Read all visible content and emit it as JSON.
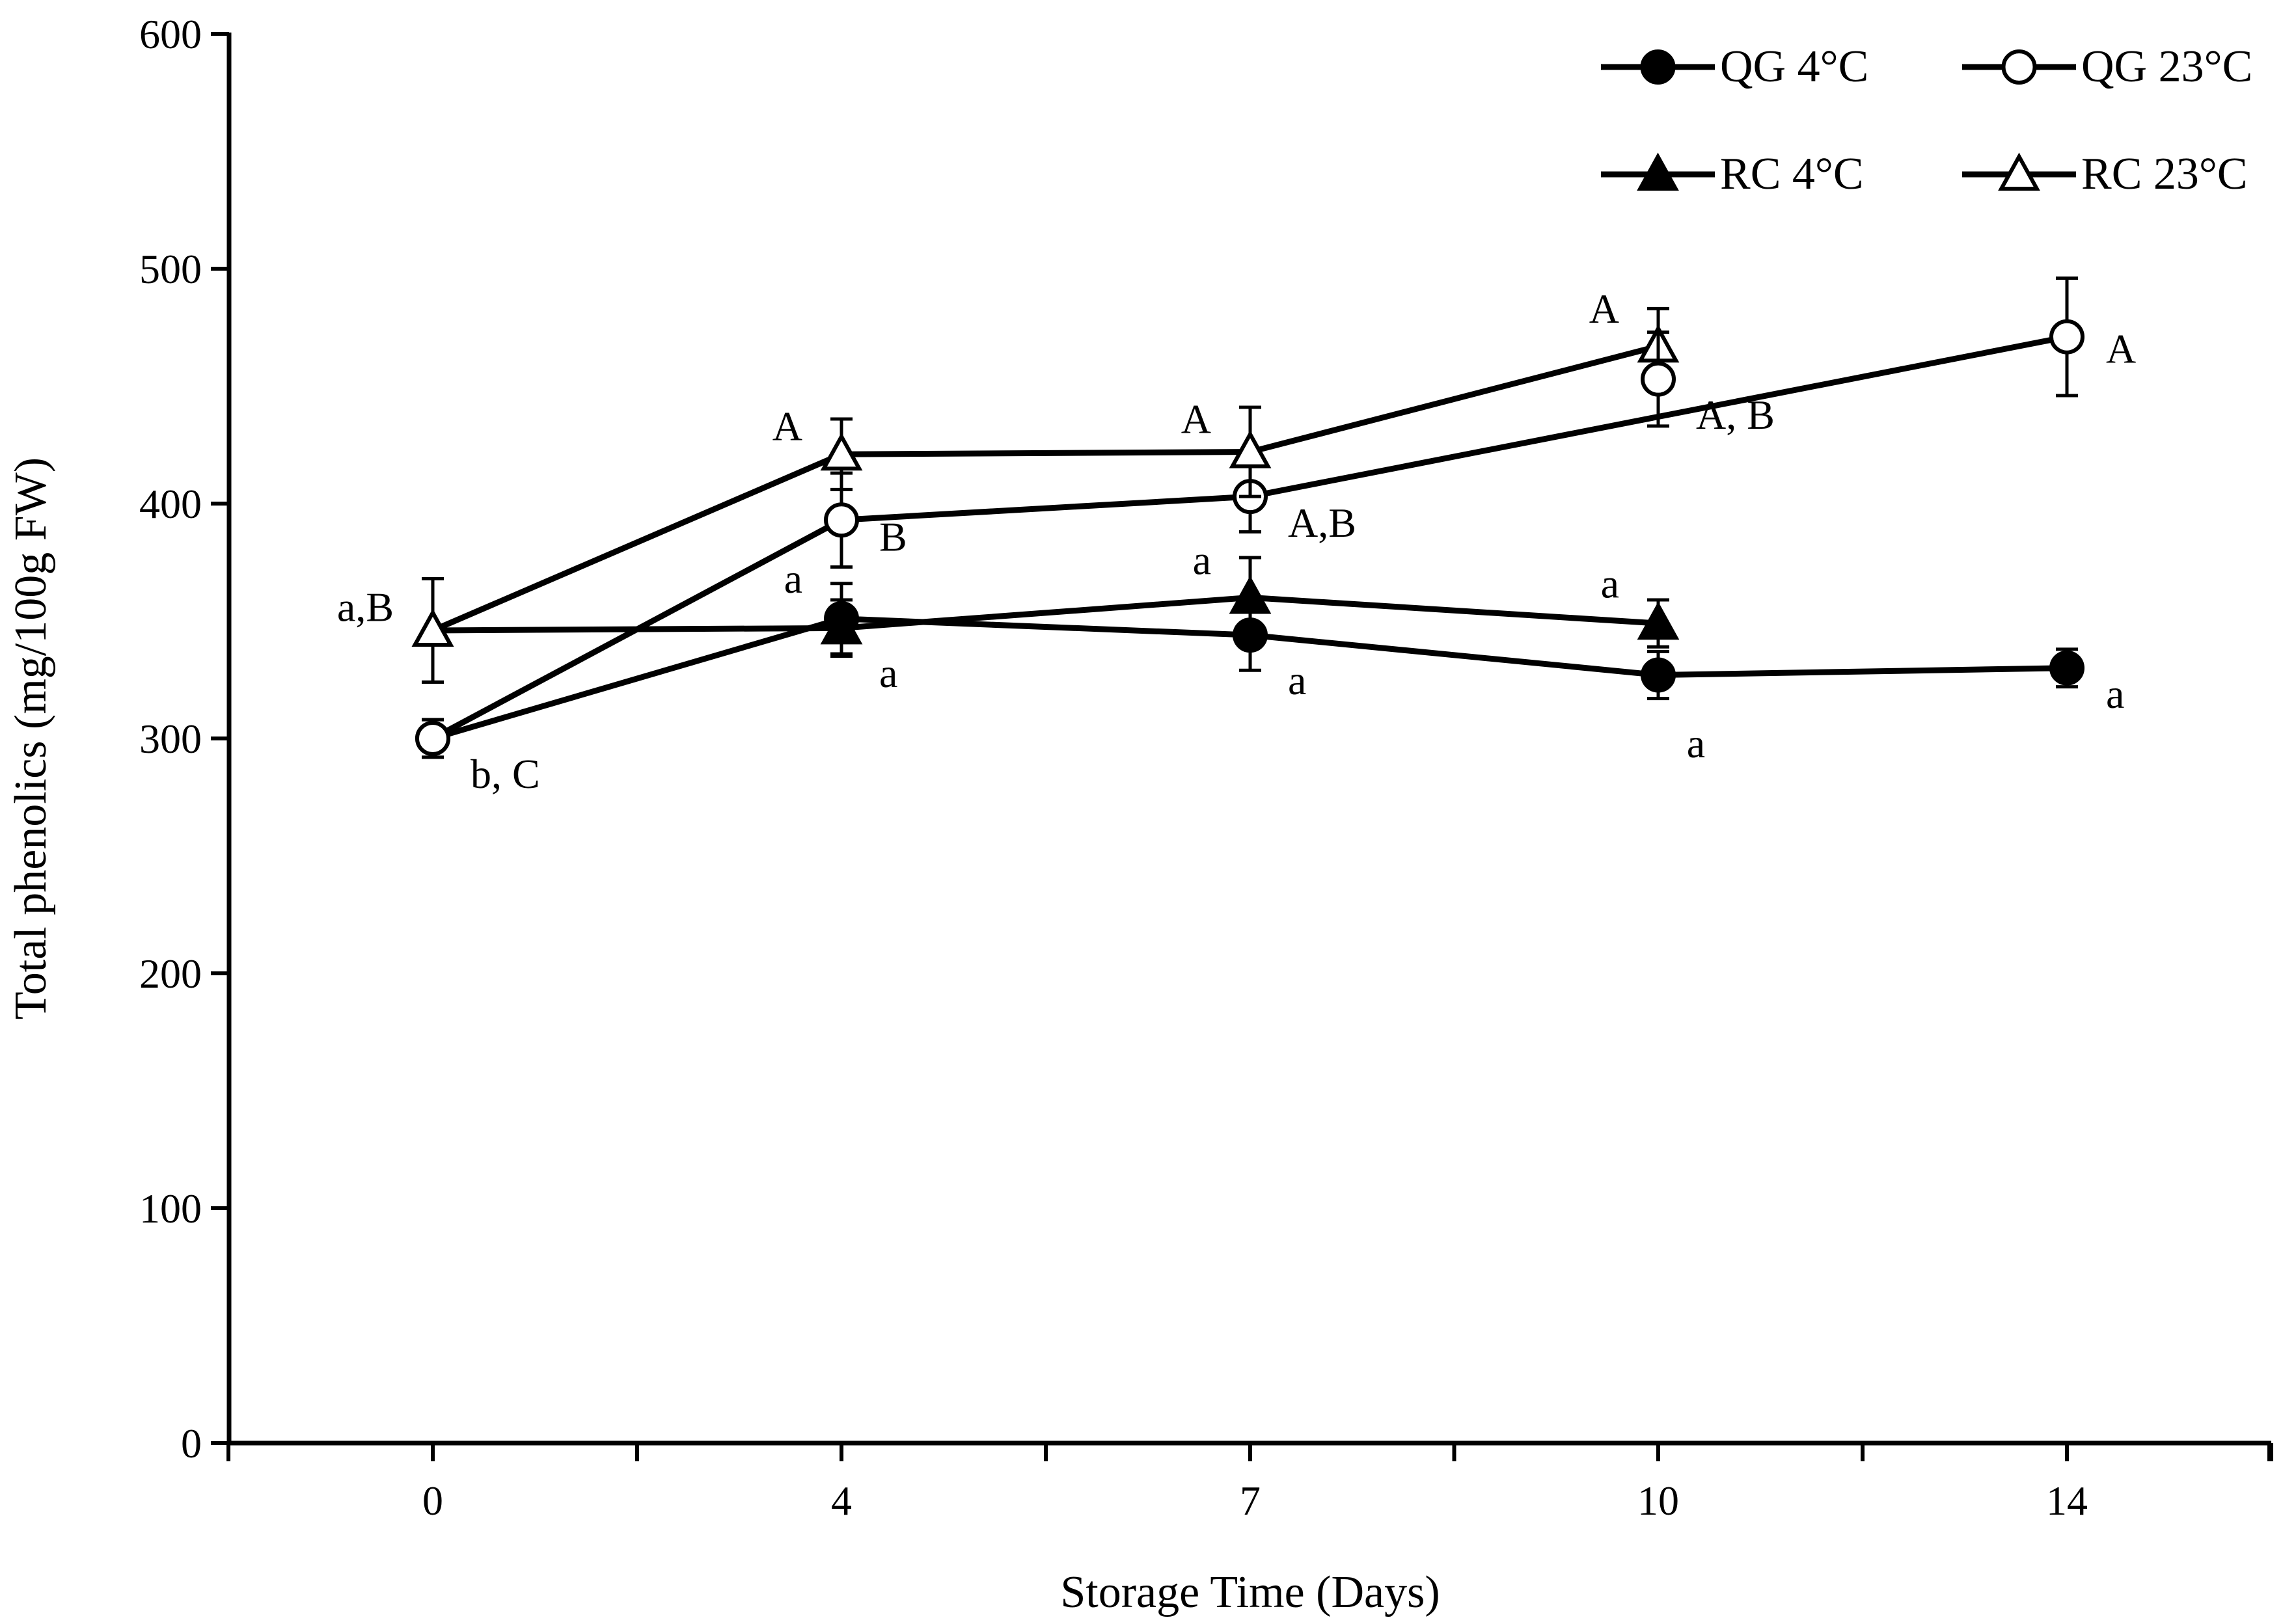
{
  "chart_data": {
    "type": "line",
    "title": "",
    "xlabel": "Storage Time (Days)",
    "ylabel": "Total phenolics (mg/100g FW)",
    "x_categories": [
      "0",
      "4",
      "7",
      "10",
      "14"
    ],
    "ylim": [
      0,
      600
    ],
    "yticks": [
      0,
      100,
      200,
      300,
      400,
      500,
      600
    ],
    "grid": false,
    "legend_position": "top-right",
    "series": [
      {
        "name": "QG 4°C",
        "marker": "circle",
        "filled": true,
        "x": [
          "0",
          "4",
          "7",
          "10",
          "14"
        ],
        "values": [
          300,
          351,
          344,
          327,
          330
        ],
        "errors": [
          8,
          15,
          15,
          10,
          8
        ]
      },
      {
        "name": "QG 23°C",
        "marker": "circle",
        "filled": false,
        "x": [
          "0",
          "4",
          "7",
          "14"
        ],
        "values": [
          300,
          393,
          403,
          471
        ],
        "errors": [
          8,
          20,
          15,
          25
        ]
      },
      {
        "name": "RC 4°C",
        "marker": "triangle",
        "filled": true,
        "x": [
          "0",
          "4",
          "7",
          "10"
        ],
        "values": [
          346,
          347,
          360,
          349
        ],
        "errors": [
          22,
          12,
          17,
          10
        ]
      },
      {
        "name": "RC 23°C",
        "marker": "triangle",
        "filled": false,
        "x": [
          "0",
          "4",
          "7",
          "10"
        ],
        "values": [
          346,
          421,
          422,
          467
        ],
        "errors": [
          22,
          15,
          19,
          16
        ]
      }
    ],
    "qg23_day10_point": {
      "x": "10",
      "value": 453,
      "error": 20
    },
    "annotations": [
      {
        "text": "a,B",
        "x": "0",
        "y": 350,
        "anchor": "left"
      },
      {
        "text": "b, C",
        "x": "0",
        "y": 285,
        "anchor": "below-right"
      },
      {
        "text": "A",
        "x": "4",
        "y": 427,
        "anchor": "left"
      },
      {
        "text": "a",
        "x": "4",
        "y": 362,
        "anchor": "left"
      },
      {
        "text": "B",
        "x": "4",
        "y": 386,
        "anchor": "below-right"
      },
      {
        "text": "a",
        "x": "4",
        "y": 328,
        "anchor": "below-right"
      },
      {
        "text": "A",
        "x": "7",
        "y": 430,
        "anchor": "left"
      },
      {
        "text": "a",
        "x": "7",
        "y": 370,
        "anchor": "left"
      },
      {
        "text": "A,B",
        "x": "7",
        "y": 392,
        "anchor": "below-right"
      },
      {
        "text": "a",
        "x": "7",
        "y": 325,
        "anchor": "below-right"
      },
      {
        "text": "A",
        "x": "10",
        "y": 477,
        "anchor": "left"
      },
      {
        "text": "a",
        "x": "10",
        "y": 360,
        "anchor": "left"
      },
      {
        "text": "A, B",
        "x": "10",
        "y": 438,
        "anchor": "below-right"
      },
      {
        "text": "a",
        "x": "10",
        "y": 298,
        "anchor": "below"
      },
      {
        "text": "A",
        "x": "14",
        "y": 460,
        "anchor": "right"
      },
      {
        "text": "a",
        "x": "14",
        "y": 313,
        "anchor": "right"
      }
    ]
  }
}
